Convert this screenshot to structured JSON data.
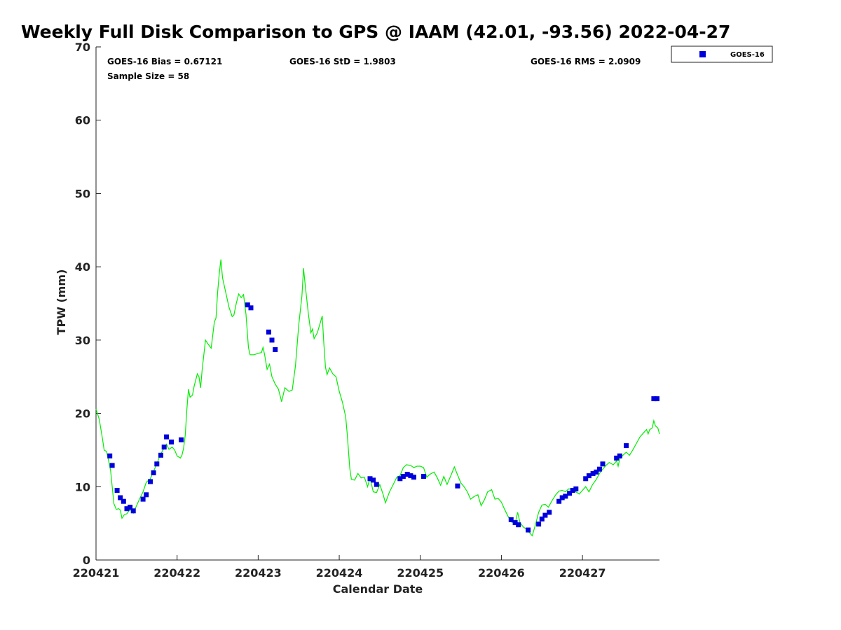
{
  "chart_data": {
    "type": "scatter",
    "title": "Weekly Full Disk Comparison to GPS @ IAAM (42.01, -93.56) 2022-04-27",
    "xlabel": "Calendar Date",
    "ylabel": "TPW (mm)",
    "xlim": [
      0,
      6.95
    ],
    "ylim": [
      0,
      70
    ],
    "x_ticks": [
      {
        "value": 0,
        "label": "220421"
      },
      {
        "value": 1,
        "label": "220422"
      },
      {
        "value": 2,
        "label": "220423"
      },
      {
        "value": 3,
        "label": "220424"
      },
      {
        "value": 4,
        "label": "220425"
      },
      {
        "value": 5,
        "label": "220426"
      },
      {
        "value": 6,
        "label": "220427"
      }
    ],
    "y_ticks": [
      0,
      10,
      20,
      30,
      40,
      50,
      60,
      70
    ],
    "grid": false,
    "legend_position": "top-right",
    "stats": {
      "bias": "GOES-16 Bias = 0.67121",
      "std": "GOES-16 StD = 1.9803",
      "rms": "GOES-16 RMS = 2.0909",
      "sample_size": "Sample Size = 58"
    },
    "series": [
      {
        "name": "GOES-16",
        "kind": "scatter",
        "color": "#0000dd",
        "marker": "square",
        "points": [
          [
            0.17,
            14.2
          ],
          [
            0.2,
            12.9
          ],
          [
            0.26,
            9.5
          ],
          [
            0.3,
            8.5
          ],
          [
            0.34,
            8.0
          ],
          [
            0.38,
            7.0
          ],
          [
            0.42,
            7.2
          ],
          [
            0.46,
            6.7
          ],
          [
            0.58,
            8.3
          ],
          [
            0.62,
            8.9
          ],
          [
            0.67,
            10.7
          ],
          [
            0.71,
            11.9
          ],
          [
            0.75,
            13.1
          ],
          [
            0.8,
            14.3
          ],
          [
            0.84,
            15.4
          ],
          [
            0.87,
            16.8
          ],
          [
            0.93,
            16.1
          ],
          [
            1.05,
            16.4
          ],
          [
            1.87,
            34.8
          ],
          [
            1.91,
            34.4
          ],
          [
            2.13,
            31.1
          ],
          [
            2.17,
            30.0
          ],
          [
            2.21,
            28.7
          ],
          [
            3.38,
            11.1
          ],
          [
            3.42,
            10.9
          ],
          [
            3.46,
            10.3
          ],
          [
            3.75,
            11.1
          ],
          [
            3.79,
            11.4
          ],
          [
            3.84,
            11.7
          ],
          [
            3.88,
            11.5
          ],
          [
            3.92,
            11.3
          ],
          [
            4.04,
            11.4
          ],
          [
            4.46,
            10.1
          ],
          [
            5.12,
            5.5
          ],
          [
            5.17,
            5.1
          ],
          [
            5.21,
            4.8
          ],
          [
            5.33,
            4.1
          ],
          [
            5.46,
            4.9
          ],
          [
            5.5,
            5.6
          ],
          [
            5.54,
            6.1
          ],
          [
            5.59,
            6.5
          ],
          [
            5.71,
            8.0
          ],
          [
            5.75,
            8.5
          ],
          [
            5.79,
            8.7
          ],
          [
            5.84,
            9.1
          ],
          [
            5.88,
            9.5
          ],
          [
            5.92,
            9.7
          ],
          [
            6.04,
            11.1
          ],
          [
            6.08,
            11.5
          ],
          [
            6.13,
            11.8
          ],
          [
            6.17,
            12.0
          ],
          [
            6.21,
            12.4
          ],
          [
            6.25,
            13.1
          ],
          [
            6.42,
            13.9
          ],
          [
            6.46,
            14.2
          ],
          [
            6.54,
            15.6
          ],
          [
            6.88,
            22.0
          ],
          [
            6.92,
            22.0
          ]
        ]
      },
      {
        "name": "GPS",
        "kind": "line",
        "color": "#00ee00",
        "points": [
          [
            0.0,
            20.6
          ],
          [
            0.04,
            19.2
          ],
          [
            0.08,
            16.5
          ],
          [
            0.1,
            15.0
          ],
          [
            0.13,
            14.8
          ],
          [
            0.15,
            13.8
          ],
          [
            0.18,
            12.2
          ],
          [
            0.2,
            10.0
          ],
          [
            0.22,
            7.7
          ],
          [
            0.25,
            6.9
          ],
          [
            0.28,
            7.0
          ],
          [
            0.3,
            6.8
          ],
          [
            0.32,
            5.7
          ],
          [
            0.35,
            6.2
          ],
          [
            0.38,
            6.3
          ],
          [
            0.42,
            6.9
          ],
          [
            0.46,
            6.4
          ],
          [
            0.5,
            7.4
          ],
          [
            0.54,
            8.4
          ],
          [
            0.58,
            9.3
          ],
          [
            0.62,
            10.6
          ],
          [
            0.67,
            11.1
          ],
          [
            0.71,
            12.1
          ],
          [
            0.75,
            13.1
          ],
          [
            0.79,
            14.3
          ],
          [
            0.83,
            15.1
          ],
          [
            0.87,
            15.8
          ],
          [
            0.9,
            15.1
          ],
          [
            0.94,
            15.4
          ],
          [
            0.97,
            15.0
          ],
          [
            1.0,
            14.2
          ],
          [
            1.04,
            13.9
          ],
          [
            1.06,
            14.3
          ],
          [
            1.08,
            15.2
          ],
          [
            1.1,
            17.0
          ],
          [
            1.12,
            20.5
          ],
          [
            1.14,
            23.3
          ],
          [
            1.16,
            22.2
          ],
          [
            1.19,
            22.5
          ],
          [
            1.21,
            23.7
          ],
          [
            1.25,
            25.4
          ],
          [
            1.27,
            25.0
          ],
          [
            1.29,
            23.5
          ],
          [
            1.31,
            26.0
          ],
          [
            1.35,
            30.0
          ],
          [
            1.38,
            29.5
          ],
          [
            1.42,
            28.9
          ],
          [
            1.46,
            32.5
          ],
          [
            1.48,
            33.0
          ],
          [
            1.5,
            36.5
          ],
          [
            1.52,
            39.0
          ],
          [
            1.54,
            41.0
          ],
          [
            1.56,
            38.5
          ],
          [
            1.6,
            36.5
          ],
          [
            1.64,
            34.5
          ],
          [
            1.68,
            33.2
          ],
          [
            1.7,
            33.4
          ],
          [
            1.73,
            35.0
          ],
          [
            1.76,
            36.3
          ],
          [
            1.79,
            35.8
          ],
          [
            1.82,
            36.2
          ],
          [
            1.85,
            33.5
          ],
          [
            1.88,
            29.0
          ],
          [
            1.9,
            28.0
          ],
          [
            1.95,
            28.0
          ],
          [
            2.0,
            28.2
          ],
          [
            2.04,
            28.3
          ],
          [
            2.06,
            29.0
          ],
          [
            2.08,
            28.0
          ],
          [
            2.11,
            26.0
          ],
          [
            2.14,
            26.7
          ],
          [
            2.17,
            25.0
          ],
          [
            2.21,
            24.0
          ],
          [
            2.25,
            23.3
          ],
          [
            2.29,
            21.6
          ],
          [
            2.33,
            23.5
          ],
          [
            2.38,
            23.0
          ],
          [
            2.42,
            23.2
          ],
          [
            2.46,
            26.5
          ],
          [
            2.5,
            32.0
          ],
          [
            2.54,
            36.0
          ],
          [
            2.56,
            39.8
          ],
          [
            2.58,
            37.5
          ],
          [
            2.62,
            33.5
          ],
          [
            2.65,
            31.0
          ],
          [
            2.67,
            31.5
          ],
          [
            2.69,
            30.2
          ],
          [
            2.73,
            31.0
          ],
          [
            2.77,
            32.5
          ],
          [
            2.79,
            33.3
          ],
          [
            2.81,
            29.5
          ],
          [
            2.83,
            26.3
          ],
          [
            2.85,
            25.3
          ],
          [
            2.88,
            26.2
          ],
          [
            2.92,
            25.4
          ],
          [
            2.96,
            25.0
          ],
          [
            3.0,
            23.0
          ],
          [
            3.04,
            21.5
          ],
          [
            3.08,
            19.5
          ],
          [
            3.1,
            17.0
          ],
          [
            3.13,
            12.5
          ],
          [
            3.15,
            11.0
          ],
          [
            3.19,
            10.9
          ],
          [
            3.23,
            11.8
          ],
          [
            3.27,
            11.2
          ],
          [
            3.31,
            11.3
          ],
          [
            3.35,
            10.0
          ],
          [
            3.38,
            11.2
          ],
          [
            3.42,
            9.3
          ],
          [
            3.46,
            9.2
          ],
          [
            3.5,
            10.3
          ],
          [
            3.54,
            9.0
          ],
          [
            3.57,
            7.8
          ],
          [
            3.62,
            9.3
          ],
          [
            3.67,
            10.4
          ],
          [
            3.71,
            11.3
          ],
          [
            3.75,
            11.5
          ],
          [
            3.79,
            12.6
          ],
          [
            3.83,
            13.0
          ],
          [
            3.88,
            12.9
          ],
          [
            3.92,
            12.6
          ],
          [
            3.96,
            12.8
          ],
          [
            4.0,
            12.8
          ],
          [
            4.04,
            12.6
          ],
          [
            4.08,
            11.3
          ],
          [
            4.12,
            11.7
          ],
          [
            4.17,
            12.0
          ],
          [
            4.21,
            11.2
          ],
          [
            4.25,
            10.2
          ],
          [
            4.29,
            11.4
          ],
          [
            4.33,
            10.3
          ],
          [
            4.38,
            11.6
          ],
          [
            4.42,
            12.7
          ],
          [
            4.46,
            11.6
          ],
          [
            4.5,
            10.5
          ],
          [
            4.54,
            10.0
          ],
          [
            4.58,
            9.3
          ],
          [
            4.62,
            8.3
          ],
          [
            4.67,
            8.7
          ],
          [
            4.71,
            8.9
          ],
          [
            4.75,
            7.4
          ],
          [
            4.79,
            8.2
          ],
          [
            4.83,
            9.3
          ],
          [
            4.88,
            9.6
          ],
          [
            4.92,
            8.3
          ],
          [
            4.96,
            8.4
          ],
          [
            5.0,
            7.9
          ],
          [
            5.04,
            6.9
          ],
          [
            5.08,
            6.0
          ],
          [
            5.12,
            5.2
          ],
          [
            5.17,
            5.0
          ],
          [
            5.2,
            6.5
          ],
          [
            5.23,
            5.1
          ],
          [
            5.27,
            4.5
          ],
          [
            5.31,
            4.2
          ],
          [
            5.35,
            3.7
          ],
          [
            5.38,
            3.3
          ],
          [
            5.42,
            4.8
          ],
          [
            5.46,
            6.5
          ],
          [
            5.5,
            7.5
          ],
          [
            5.54,
            7.6
          ],
          [
            5.58,
            7.2
          ],
          [
            5.62,
            8.0
          ],
          [
            5.67,
            8.9
          ],
          [
            5.71,
            9.4
          ],
          [
            5.75,
            9.5
          ],
          [
            5.79,
            9.3
          ],
          [
            5.83,
            9.7
          ],
          [
            5.88,
            9.6
          ],
          [
            5.92,
            9.3
          ],
          [
            5.96,
            9.0
          ],
          [
            6.0,
            9.5
          ],
          [
            6.04,
            10.0
          ],
          [
            6.08,
            9.3
          ],
          [
            6.12,
            10.2
          ],
          [
            6.17,
            11.0
          ],
          [
            6.21,
            11.8
          ],
          [
            6.25,
            12.4
          ],
          [
            6.29,
            12.9
          ],
          [
            6.33,
            13.3
          ],
          [
            6.38,
            13.0
          ],
          [
            6.42,
            13.5
          ],
          [
            6.44,
            12.8
          ],
          [
            6.46,
            13.8
          ],
          [
            6.5,
            14.3
          ],
          [
            6.54,
            14.7
          ],
          [
            6.58,
            14.3
          ],
          [
            6.62,
            15.0
          ],
          [
            6.67,
            16.0
          ],
          [
            6.71,
            16.8
          ],
          [
            6.75,
            17.3
          ],
          [
            6.79,
            17.8
          ],
          [
            6.81,
            17.2
          ],
          [
            6.83,
            17.8
          ],
          [
            6.86,
            18.0
          ],
          [
            6.88,
            19.0
          ],
          [
            6.9,
            18.3
          ],
          [
            6.93,
            18.0
          ],
          [
            6.95,
            17.2
          ]
        ]
      }
    ]
  }
}
